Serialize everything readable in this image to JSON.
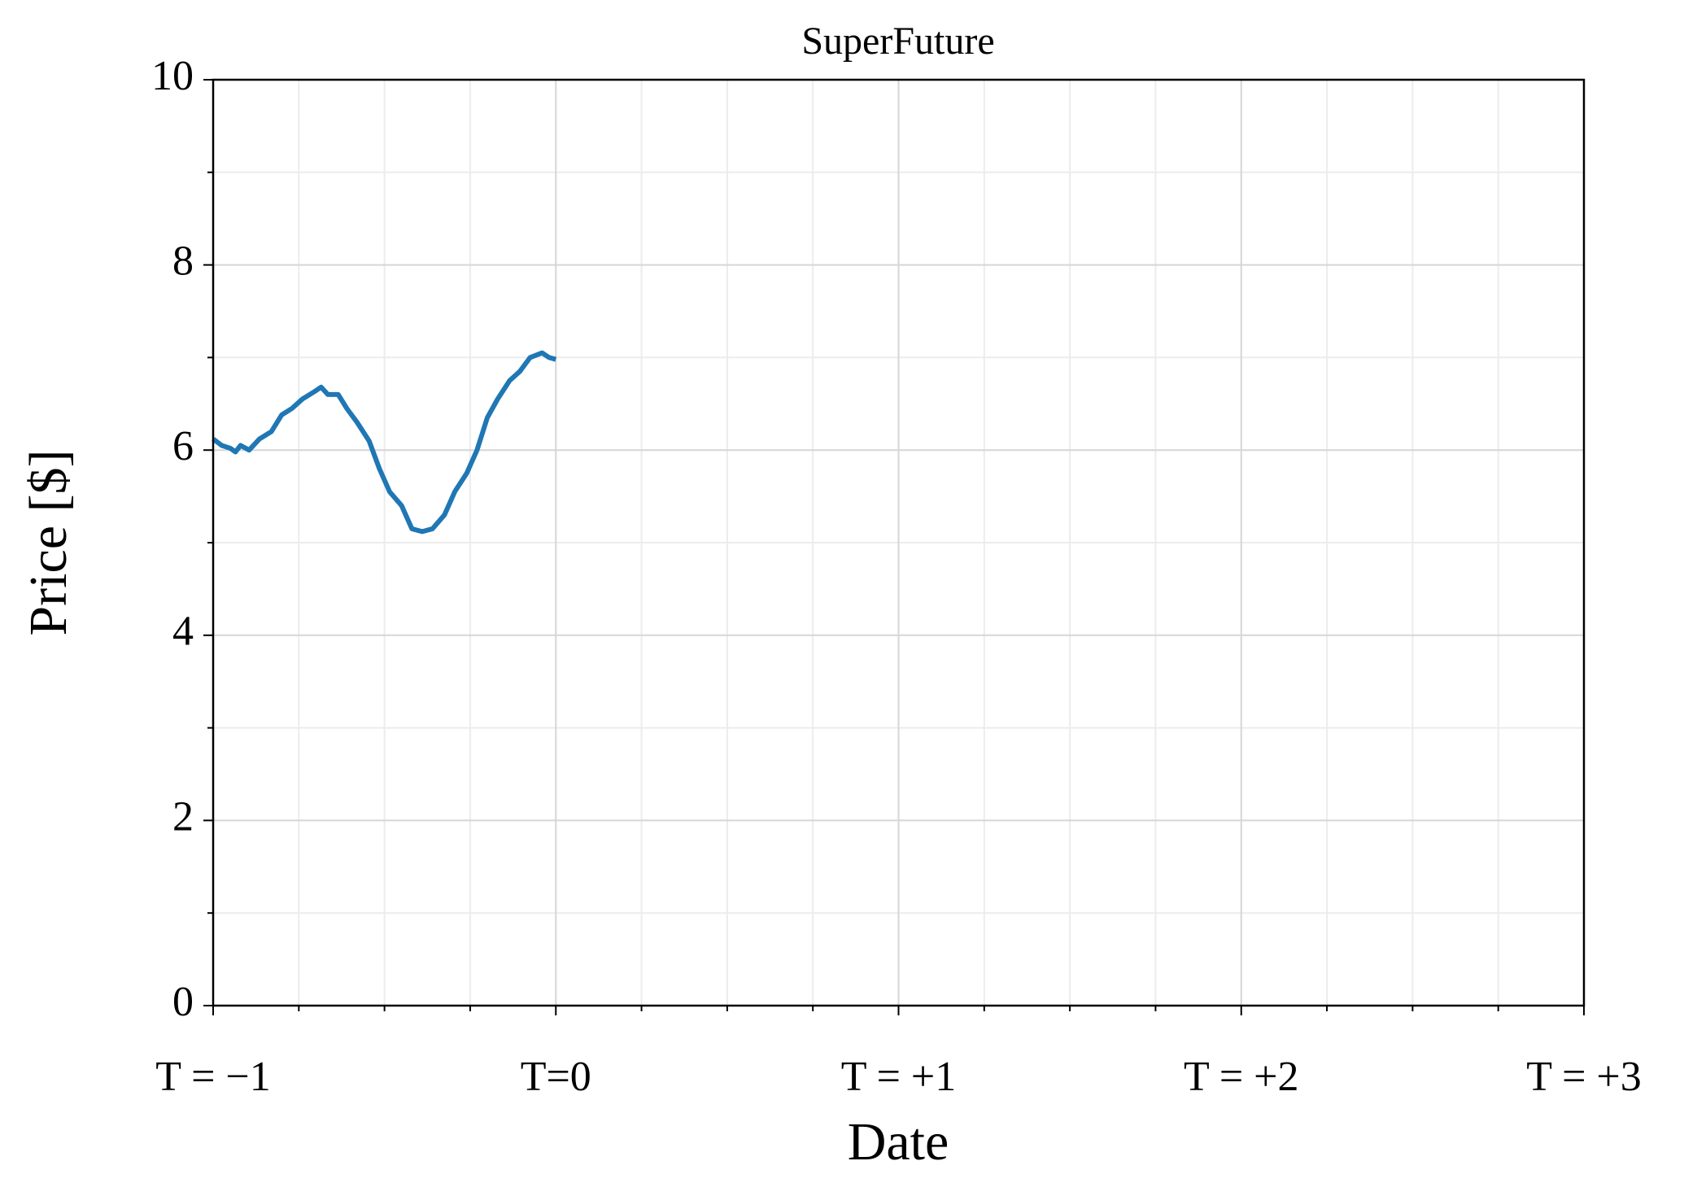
{
  "chart_data": {
    "type": "line",
    "title": "SuperFuture",
    "xlabel": "Date",
    "ylabel": "Price [$]",
    "x": [
      -1.0,
      -0.975,
      -0.95,
      -0.935,
      -0.92,
      -0.895,
      -0.865,
      -0.83,
      -0.8,
      -0.77,
      -0.74,
      -0.705,
      -0.685,
      -0.665,
      -0.635,
      -0.61,
      -0.58,
      -0.545,
      -0.515,
      -0.485,
      -0.45,
      -0.42,
      -0.39,
      -0.36,
      -0.325,
      -0.295,
      -0.26,
      -0.23,
      -0.2,
      -0.17,
      -0.135,
      -0.105,
      -0.075,
      -0.04,
      -0.02,
      0
    ],
    "series": [
      {
        "color": "#1f77b4",
        "values": [
          6.12,
          6.05,
          6.02,
          5.98,
          6.05,
          6.0,
          6.12,
          6.2,
          6.38,
          6.45,
          6.55,
          6.63,
          6.68,
          6.6,
          6.6,
          6.45,
          6.3,
          6.1,
          5.8,
          5.55,
          5.4,
          5.15,
          5.12,
          5.15,
          5.3,
          5.55,
          5.75,
          6.0,
          6.35,
          6.55,
          6.75,
          6.85,
          7.0,
          7.05,
          7.0,
          6.98
        ]
      }
    ],
    "xlim": [
      -1,
      3
    ],
    "ylim": [
      0,
      10
    ],
    "xticks": [
      {
        "value": -1,
        "label": "T = −1"
      },
      {
        "value": 0,
        "label": "T=0"
      },
      {
        "value": 1,
        "label": "T = +1"
      },
      {
        "value": 2,
        "label": "T = +2"
      },
      {
        "value": 3,
        "label": "T = +3"
      }
    ],
    "yticks": [
      0,
      2,
      4,
      6,
      8,
      10
    ],
    "xminorticks": [
      -0.75,
      -0.5,
      -0.25,
      0.25,
      0.5,
      0.75,
      1.25,
      1.5,
      1.75,
      2.25,
      2.5,
      2.75
    ],
    "yminorticks": [
      1,
      3,
      5,
      7,
      9
    ],
    "grid": true
  }
}
